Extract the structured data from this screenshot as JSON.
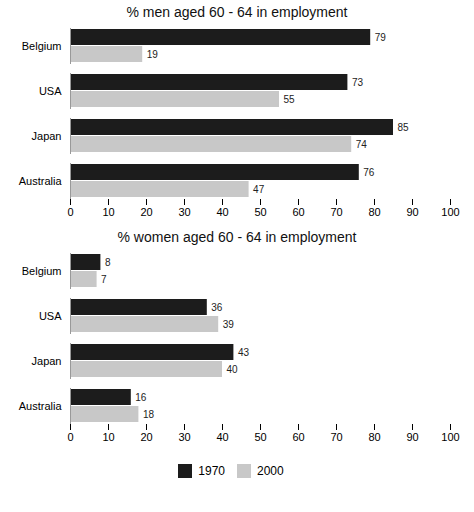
{
  "chart_data": [
    {
      "type": "bar",
      "orientation": "horizontal",
      "title": "% men aged 60 - 64 in employment",
      "categories": [
        "Belgium",
        "USA",
        "Japan",
        "Australia"
      ],
      "series": [
        {
          "name": "1970",
          "color": "#1c1c1c",
          "values": [
            79,
            73,
            85,
            76
          ]
        },
        {
          "name": "2000",
          "color": "#c8c8c8",
          "values": [
            19,
            55,
            74,
            47
          ]
        }
      ],
      "xlim": [
        0,
        100
      ],
      "xticks": [
        0,
        10,
        20,
        30,
        40,
        50,
        60,
        70,
        80,
        90,
        100
      ],
      "grid": false,
      "data_labels": true
    },
    {
      "type": "bar",
      "orientation": "horizontal",
      "title": "% women aged 60 - 64 in employment",
      "categories": [
        "Belgium",
        "USA",
        "Japan",
        "Australia"
      ],
      "series": [
        {
          "name": "1970",
          "color": "#1c1c1c",
          "values": [
            8,
            36,
            43,
            16
          ]
        },
        {
          "name": "2000",
          "color": "#c8c8c8",
          "values": [
            7,
            39,
            40,
            18
          ]
        }
      ],
      "xlim": [
        0,
        100
      ],
      "xticks": [
        0,
        10,
        20,
        30,
        40,
        50,
        60,
        70,
        80,
        90,
        100
      ],
      "grid": false,
      "data_labels": true,
      "legend": "bottom"
    }
  ]
}
